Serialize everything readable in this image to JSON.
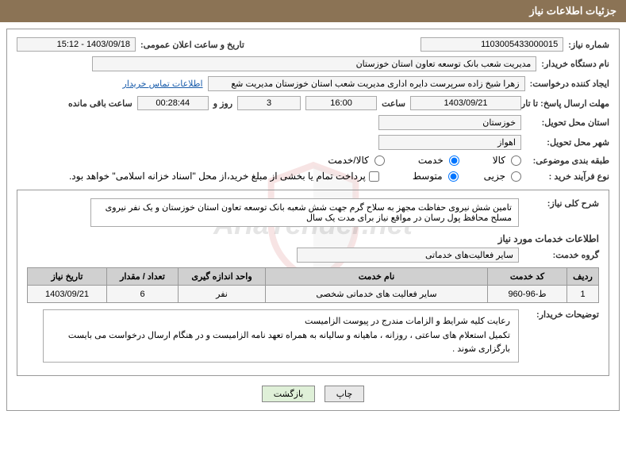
{
  "header": {
    "title": "جزئیات اطلاعات نیاز"
  },
  "fields": {
    "need_number_label": "شماره نیاز:",
    "need_number": "1103005433000015",
    "announce_date_label": "تاریخ و ساعت اعلان عمومی:",
    "announce_date": "1403/09/18 - 15:12",
    "buyer_org_label": "نام دستگاه خریدار:",
    "buyer_org": "مدیریت شعب بانک توسعه تعاون استان خوزستان",
    "requester_label": "ایجاد کننده درخواست:",
    "requester": "زهرا شیخ زاده سرپرست دایره اداری مدیریت شعب استان خوزستان مدیریت شع",
    "contact_link": "اطلاعات تماس خریدار",
    "deadline_label": "مهلت ارسال پاسخ: تا تاریخ:",
    "deadline_date": "1403/09/21",
    "time_label": "ساعت",
    "deadline_time": "16:00",
    "days_count": "3",
    "days_and_label": "روز و",
    "countdown": "00:28:44",
    "remaining_label": "ساعت باقی مانده",
    "province_label": "استان محل تحویل:",
    "province": "خوزستان",
    "city_label": "شهر محل تحویل:",
    "city": "اهواز",
    "category_label": "طبقه بندی موضوعی:",
    "cat_goods": "کالا",
    "cat_service": "خدمت",
    "cat_goods_service": "کالا/خدمت",
    "process_label": "نوع فرآیند خرید :",
    "proc_minor": "جزیی",
    "proc_medium": "متوسط",
    "payment_note": "پرداخت تمام یا بخشی از مبلغ خرید،از محل \"اسناد خزانه اسلامی\" خواهد بود.",
    "need_desc_label": "شرح کلی نیاز:",
    "need_desc": "تامین شش نیروی حفاظت مجهز به سلاح گرم جهت شش شعبه بانک توسعه تعاون استان خوزستان و یک نفر نیروی مسلح محافظ پول رسان در مواقع نیاز برای مدت یک سال",
    "service_info_title": "اطلاعات خدمات مورد نیاز",
    "service_group_label": "گروه خدمت:",
    "service_group": "سایر فعالیت‌های خدماتی",
    "buyer_notes_label": "توضیحات خریدار:",
    "buyer_notes": "رعایت کلیه شرایط و الزامات مندرج در پیوست الزامیست\nتکمیل استعلام های ساعتی ، روزانه ، ماهیانه و سالیانه به همراه تعهد نامه  الزامیست و در هنگام ارسال درخواست می بایست بارگزاری شوند ."
  },
  "table": {
    "headers": {
      "row": "ردیف",
      "code": "کد خدمت",
      "name": "نام خدمت",
      "unit": "واحد اندازه گیری",
      "qty": "تعداد / مقدار",
      "date": "تاریخ نیاز"
    },
    "rows": [
      {
        "row": "1",
        "code": "ط-96-960",
        "name": "سایر فعالیت های خدماتی شخصی",
        "unit": "نفر",
        "qty": "6",
        "date": "1403/09/21"
      }
    ]
  },
  "buttons": {
    "print": "چاپ",
    "back": "بازگشت"
  },
  "colors": {
    "header_bg": "#8b7355",
    "border": "#999999",
    "input_bg": "#f5f5f5",
    "link": "#1a5dab"
  }
}
